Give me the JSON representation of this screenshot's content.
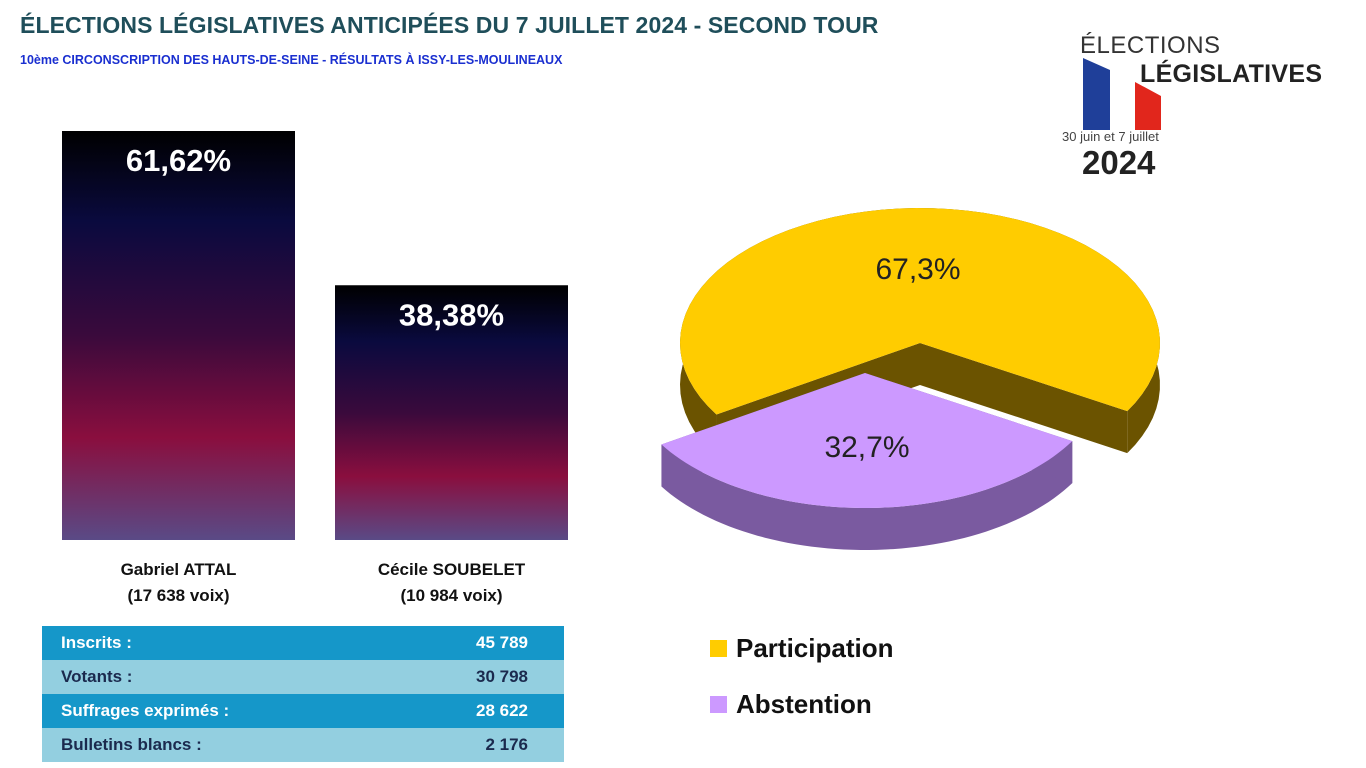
{
  "header": {
    "title": "ÉLECTIONS LÉGISLATIVES ANTICIPÉES DU 7 JUILLET 2024 - SECOND TOUR",
    "subtitle": "10ème CIRCONSCRIPTION DES HAUTS-DE-SEINE - RÉSULTATS À ISSY-LES-MOULINEAUX"
  },
  "logo": {
    "line1": "ÉLECTIONS",
    "line2": "LÉGISLATIVES",
    "dates": "30 juin et 7 juillet",
    "year": "2024",
    "flag_colors": [
      "#1f3f99",
      "#ffffff",
      "#e1261c"
    ]
  },
  "chart_data": [
    {
      "type": "bar",
      "categories": [
        "Gabriel ATTAL",
        "Cécile SOUBELET"
      ],
      "values": [
        61.62,
        38.38
      ],
      "value_labels": [
        "61,62%",
        "38,38%"
      ],
      "category_labels": [
        {
          "name": "Gabriel ATTAL",
          "votes": "(17 638 voix)"
        },
        {
          "name": "Cécile SOUBELET",
          "votes": "(10 984 voix)"
        }
      ],
      "ylim": [
        0,
        61.62
      ],
      "grid": false,
      "gradient_colors": [
        "#000000",
        "#0a0a3e",
        "#3a0a3c",
        "#8a0e3e",
        "#5a4a86"
      ]
    },
    {
      "type": "pie",
      "style": "3d-exploded",
      "labels": [
        "Participation",
        "Abstention"
      ],
      "values": [
        67.3,
        32.7
      ],
      "value_labels": [
        "67,3%",
        "32,7%"
      ],
      "colors": [
        "#ffcc00",
        "#cc99ff"
      ],
      "side_colors": [
        "#6b5300",
        "#7a5aa0"
      ],
      "legend_position": "bottom"
    }
  ],
  "stats_table": [
    {
      "label": "Inscrits :",
      "value": "45 789"
    },
    {
      "label": "Votants :",
      "value": "30 798"
    },
    {
      "label": "Suffrages exprimés :",
      "value": "28 622"
    },
    {
      "label": "Bulletins blancs :",
      "value": "2 176"
    }
  ],
  "legend": [
    {
      "label": "Participation",
      "color": "#ffcc00"
    },
    {
      "label": "Abstention",
      "color": "#cc99ff"
    }
  ]
}
